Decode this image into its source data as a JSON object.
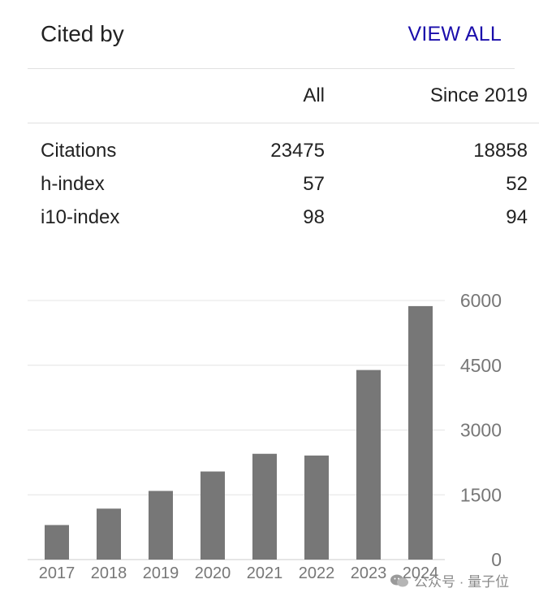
{
  "header": {
    "title": "Cited by",
    "view_all_label": "VIEW ALL"
  },
  "stats": {
    "columns": {
      "all": "All",
      "since": "Since 2019"
    },
    "rows": [
      {
        "label": "Citations",
        "all": "23475",
        "since": "18858"
      },
      {
        "label": "h-index",
        "all": "57",
        "since": "52"
      },
      {
        "label": "i10-index",
        "all": "98",
        "since": "94"
      }
    ]
  },
  "chart_data": {
    "type": "bar",
    "categories": [
      "2017",
      "2018",
      "2019",
      "2020",
      "2021",
      "2022",
      "2023",
      "2024"
    ],
    "values": [
      800,
      1180,
      1590,
      2040,
      2450,
      2410,
      4390,
      5870
    ],
    "yticks": [
      "0",
      "1500",
      "3000",
      "4500",
      "6000"
    ],
    "ylim": [
      0,
      6000
    ],
    "bar_color": "#777777",
    "grid": true
  },
  "watermark": {
    "text": "公众号 · 量子位"
  }
}
